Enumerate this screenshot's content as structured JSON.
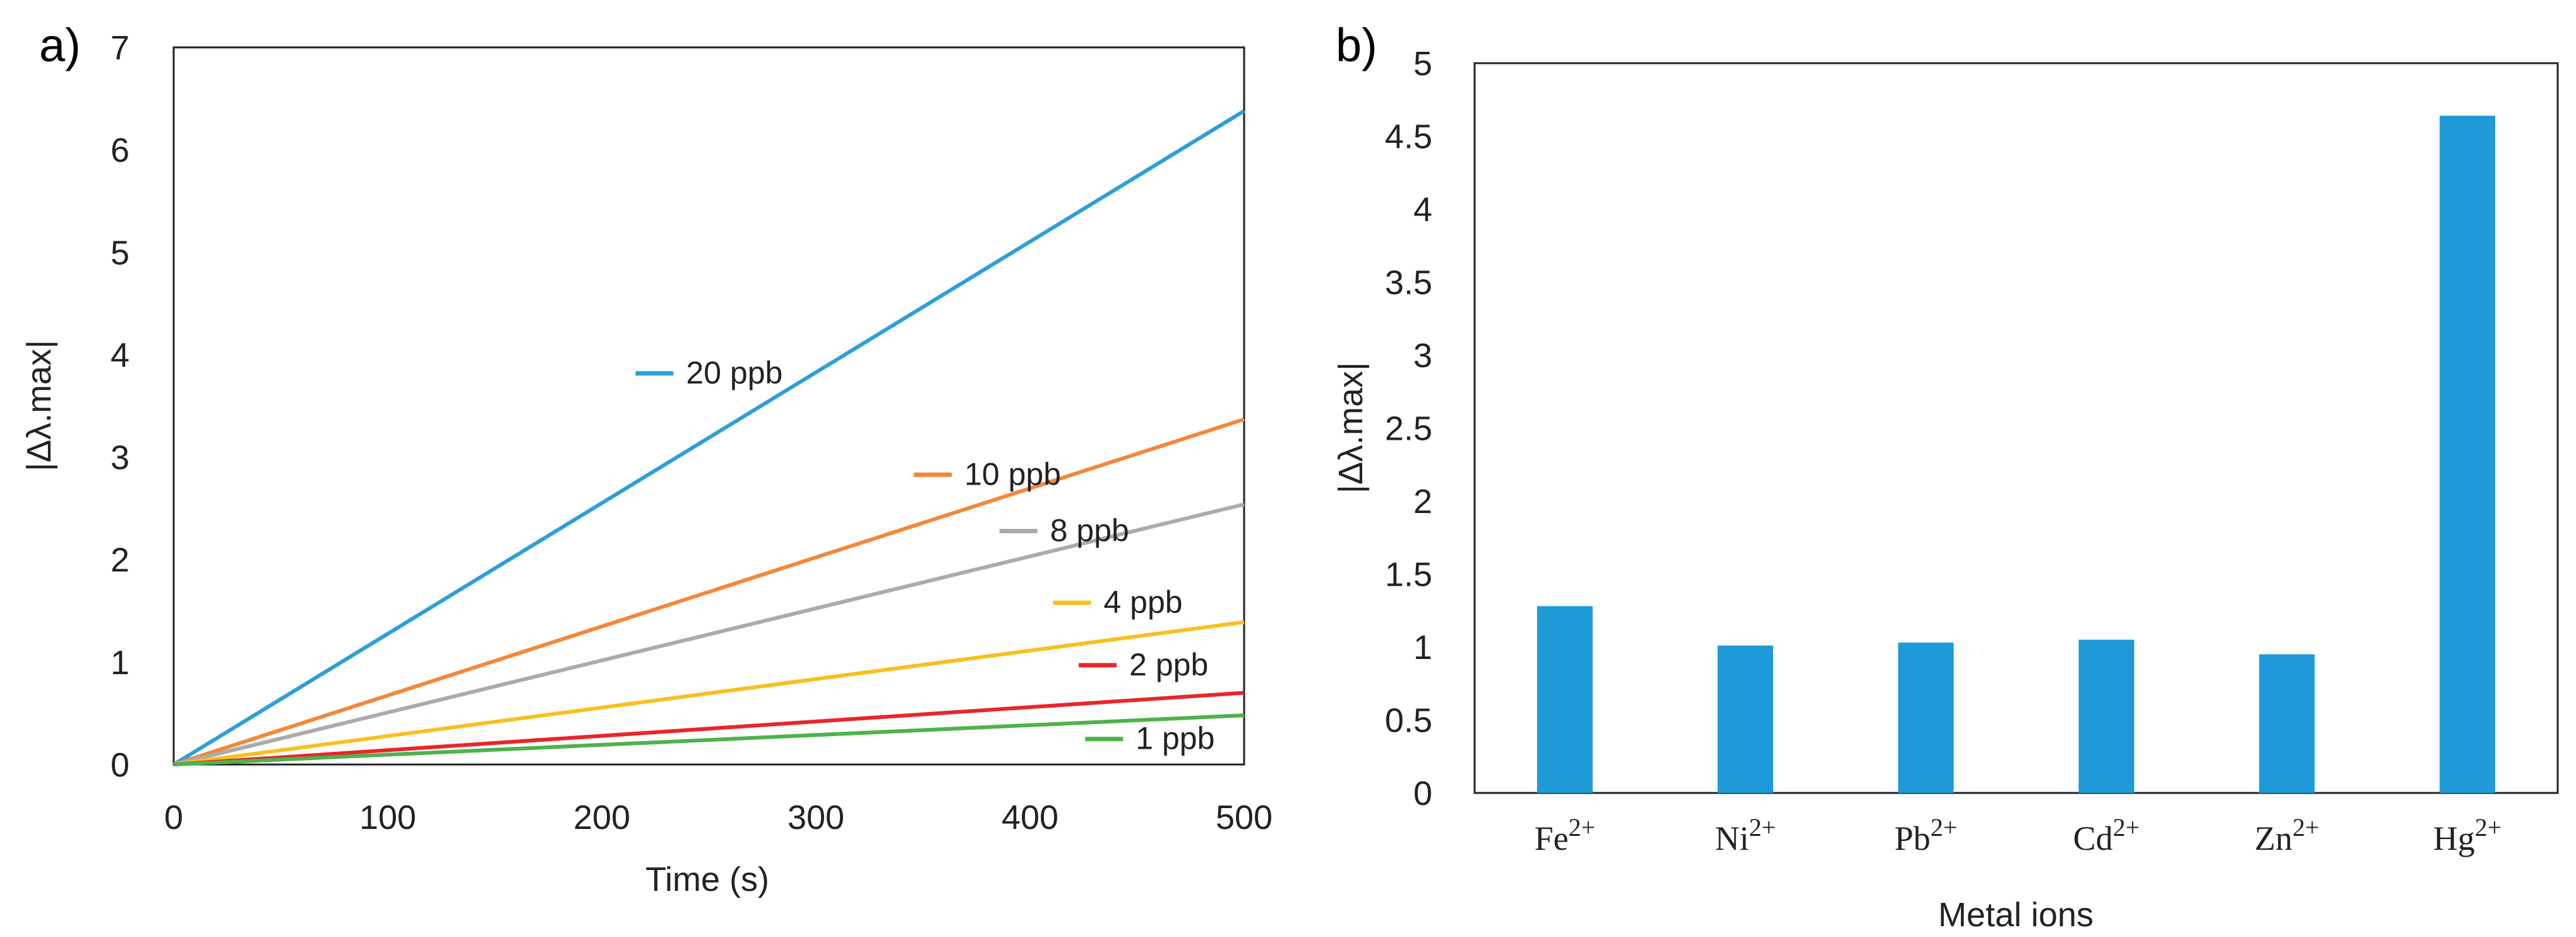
{
  "chart_data": [
    {
      "panel_label": "a)",
      "type": "line",
      "xlabel": "Time (s)",
      "ylabel": "|Δλ.max|",
      "xlim": [
        0,
        500
      ],
      "ylim": [
        0,
        7
      ],
      "xticks": [
        "0",
        "100",
        "200",
        "300",
        "400",
        "500"
      ],
      "yticks": [
        "0",
        "1",
        "2",
        "3",
        "4",
        "5",
        "6",
        "7"
      ],
      "grid": false,
      "legend": "inline labels next to each line",
      "series": [
        {
          "name": "20 ppb",
          "color": "#2E9FD6",
          "x": [
            0,
            500
          ],
          "y": [
            0,
            6.38
          ],
          "label_at": [
            260,
            3.72
          ]
        },
        {
          "name": "10 ppb",
          "color": "#F4873A",
          "x": [
            0,
            500
          ],
          "y": [
            0,
            3.37
          ],
          "label_at": [
            390,
            2.73
          ]
        },
        {
          "name": "8 ppb",
          "color": "#ABABAB",
          "x": [
            0,
            500
          ],
          "y": [
            0,
            2.54
          ],
          "label_at": [
            430,
            2.18
          ]
        },
        {
          "name": "4 ppb",
          "color": "#F7C020",
          "x": [
            0,
            500
          ],
          "y": [
            0,
            1.39
          ],
          "label_at": [
            455,
            1.48
          ]
        },
        {
          "name": "2 ppb",
          "color": "#E8262A",
          "x": [
            0,
            500
          ],
          "y": [
            0,
            0.7
          ],
          "label_at": [
            467,
            0.87
          ]
        },
        {
          "name": "1 ppb",
          "color": "#4DB34B",
          "x": [
            0,
            500
          ],
          "y": [
            0,
            0.48
          ],
          "label_at": [
            470,
            0.15
          ]
        }
      ]
    },
    {
      "panel_label": "b)",
      "type": "bar",
      "xlabel": "Metal ions",
      "ylabel": "|Δλ.max|",
      "ylim": [
        0,
        5
      ],
      "yticks": [
        "0",
        "0.5",
        "1",
        "1.5",
        "2",
        "2.5",
        "3",
        "3.5",
        "4",
        "4.5",
        "5"
      ],
      "grid": false,
      "color": "#1E9AD8",
      "categories": [
        {
          "base": "Fe",
          "sup": "2+"
        },
        {
          "base": "Ni",
          "sup": "2+"
        },
        {
          "base": "Pb",
          "sup": "2+"
        },
        {
          "base": "Cd",
          "sup": "2+"
        },
        {
          "base": "Zn",
          "sup": "2+"
        },
        {
          "base": "Hg",
          "sup": "2+"
        }
      ],
      "values": [
        1.28,
        1.01,
        1.03,
        1.05,
        0.95,
        4.64
      ]
    }
  ]
}
